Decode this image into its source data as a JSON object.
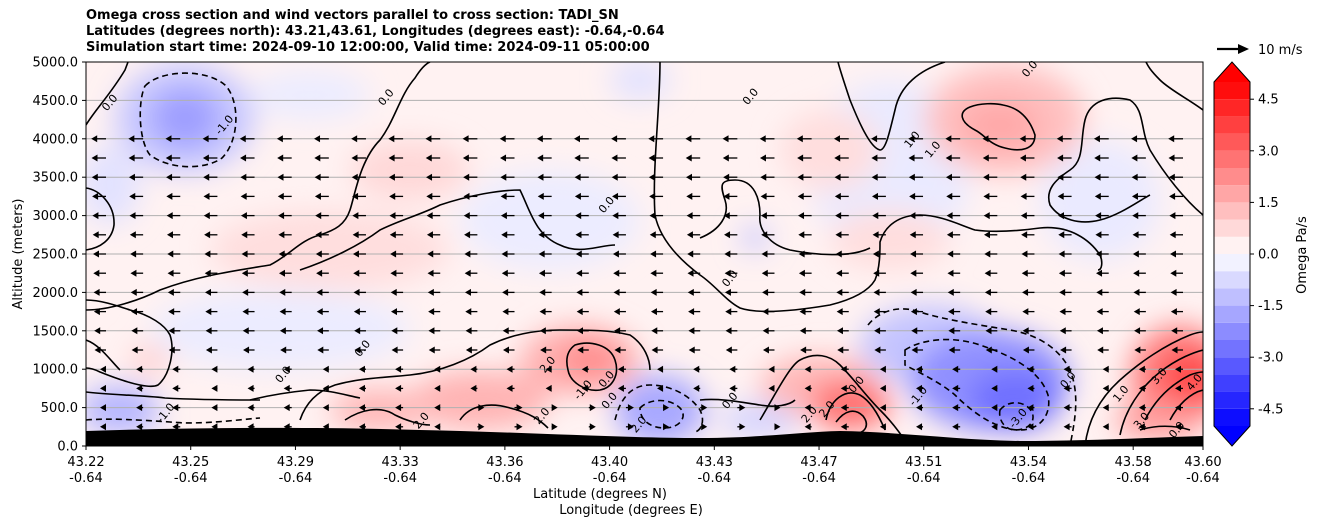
{
  "chart_data": {
    "type": "heatmap",
    "title_lines": [
      "Omega cross section and wind vectors parallel to cross section: TADI_SN",
      "Latitudes (degrees north): 43.21,43.61, Longitudes (degrees east): -0.64,-0.64",
      "Simulation start time: 2024-09-10 12:00:00, Valid time: 2024-09-11 05:00:00"
    ],
    "xlabel_line1": "Latitude (degrees N)",
    "xlabel_line2": "Longitude (degrees E)",
    "ylabel": "Altitude (meters)",
    "ylim": [
      0,
      5000
    ],
    "y_ticks": [
      "0.0",
      "500.0",
      "1000.0",
      "1500.0",
      "2000.0",
      "2500.0",
      "3000.0",
      "3500.0",
      "4000.0",
      "4500.0",
      "5000.0"
    ],
    "y_tick_values": [
      0,
      500,
      1000,
      1500,
      2000,
      2500,
      3000,
      3500,
      4000,
      4500,
      5000
    ],
    "x_ticks": [
      {
        "lat": "43.22",
        "lon": "-0.64",
        "frac": 0.0
      },
      {
        "lat": "43.25",
        "lon": "-0.64",
        "frac": 0.09375
      },
      {
        "lat": "43.29",
        "lon": "-0.64",
        "frac": 0.1875
      },
      {
        "lat": "43.33",
        "lon": "-0.64",
        "frac": 0.28125
      },
      {
        "lat": "43.36",
        "lon": "-0.64",
        "frac": 0.375
      },
      {
        "lat": "43.40",
        "lon": "-0.64",
        "frac": 0.46875
      },
      {
        "lat": "43.43",
        "lon": "-0.64",
        "frac": 0.5625
      },
      {
        "lat": "43.47",
        "lon": "-0.64",
        "frac": 0.65625
      },
      {
        "lat": "43.51",
        "lon": "-0.64",
        "frac": 0.75
      },
      {
        "lat": "43.54",
        "lon": "-0.64",
        "frac": 0.84375
      },
      {
        "lat": "43.58",
        "lon": "-0.64",
        "frac": 0.9375
      },
      {
        "lat": "43.60",
        "lon": "-0.64",
        "frac": 1.0
      }
    ],
    "grid": "horizontal",
    "colorbar": {
      "label": "Omega Pa/s",
      "range": [
        -5.0,
        5.0
      ],
      "ticks": [
        "-4.5",
        "-3.0",
        "-1.5",
        "0.0",
        "1.5",
        "3.0",
        "4.5"
      ],
      "tick_values": [
        -4.5,
        -3.0,
        -1.5,
        0.0,
        1.5,
        3.0,
        4.5
      ],
      "colormap": "bwr",
      "extend": "both",
      "min_color": "#0000ff",
      "max_color": "#ff0000"
    },
    "quiver_key": {
      "label": "10 m/s"
    },
    "contour_labels": [
      {
        "text": "0.0",
        "lat": 43.229,
        "alt": 4440
      },
      {
        "text": "-1.0",
        "lat": 43.268,
        "alt": 4150
      },
      {
        "text": "0.0",
        "lat": 43.323,
        "alt": 4510
      },
      {
        "text": "0.0",
        "lat": 43.398,
        "alt": 3110
      },
      {
        "text": "0.0",
        "lat": 43.447,
        "alt": 4520
      },
      {
        "text": "0.0",
        "lat": 43.542,
        "alt": 4880
      },
      {
        "text": "1.0",
        "lat": 43.502,
        "alt": 3960
      },
      {
        "text": "1.0",
        "lat": 43.509,
        "alt": 3830
      },
      {
        "text": "0.0",
        "lat": 43.44,
        "alt": 2150
      },
      {
        "text": "0.0",
        "lat": 43.315,
        "alt": 1240
      },
      {
        "text": "0.0",
        "lat": 43.288,
        "alt": 900
      },
      {
        "text": "-1.0",
        "lat": 43.248,
        "alt": 400
      },
      {
        "text": "2.0",
        "lat": 43.378,
        "alt": 1030
      },
      {
        "text": "-1.0",
        "lat": 43.39,
        "alt": 700
      },
      {
        "text": "0.0",
        "lat": 43.398,
        "alt": 840
      },
      {
        "text": "0.0",
        "lat": 43.399,
        "alt": 560
      },
      {
        "text": "2.0",
        "lat": 43.335,
        "alt": 300
      },
      {
        "text": "2.0",
        "lat": 43.376,
        "alt": 360
      },
      {
        "text": "2.0",
        "lat": 43.409,
        "alt": 250
      },
      {
        "text": "0.0",
        "lat": 43.44,
        "alt": 560
      },
      {
        "text": "2.0",
        "lat": 43.467,
        "alt": 380
      },
      {
        "text": "2.0",
        "lat": 43.473,
        "alt": 450
      },
      {
        "text": "0.0",
        "lat": 43.483,
        "alt": 770
      },
      {
        "text": "-1.0",
        "lat": 43.504,
        "alt": 620
      },
      {
        "text": "0.0",
        "lat": 43.555,
        "alt": 830
      },
      {
        "text": "1.0",
        "lat": 43.573,
        "alt": 650
      },
      {
        "text": "3.0",
        "lat": 43.586,
        "alt": 880
      },
      {
        "text": "4.0",
        "lat": 43.598,
        "alt": 800
      },
      {
        "text": "-3.0",
        "lat": 43.538,
        "alt": 330
      },
      {
        "text": "3.0",
        "lat": 43.58,
        "alt": 300
      },
      {
        "text": "0.0",
        "lat": 43.592,
        "alt": 180
      }
    ]
  }
}
